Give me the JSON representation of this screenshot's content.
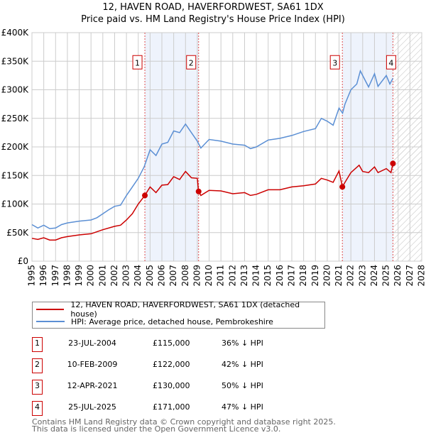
{
  "chart_data": {
    "type": "line",
    "title": "12, HAVEN ROAD, HAVERFORDWEST, SA61 1DX",
    "subtitle": "Price paid vs. HM Land Registry's House Price Index (HPI)",
    "xlim": [
      1995,
      2028
    ],
    "ylim": [
      0,
      400000
    ],
    "x_ticks": [
      "1995",
      "1996",
      "1997",
      "1998",
      "1999",
      "2000",
      "2001",
      "2002",
      "2003",
      "2004",
      "2005",
      "2006",
      "2007",
      "2008",
      "2009",
      "2010",
      "2011",
      "2012",
      "2013",
      "2014",
      "2015",
      "2016",
      "2017",
      "2018",
      "2019",
      "2020",
      "2021",
      "2022",
      "2023",
      "2024",
      "2025",
      "2026",
      "2027",
      "2028"
    ],
    "y_ticks": [
      {
        "v": 0,
        "label": "£0"
      },
      {
        "v": 50000,
        "label": "£50K"
      },
      {
        "v": 100000,
        "label": "£100K"
      },
      {
        "v": 150000,
        "label": "£150K"
      },
      {
        "v": 200000,
        "label": "£200K"
      },
      {
        "v": 250000,
        "label": "£250K"
      },
      {
        "v": 300000,
        "label": "£300K"
      },
      {
        "v": 350000,
        "label": "£350K"
      },
      {
        "v": 400000,
        "label": "£400K"
      }
    ],
    "grid": true,
    "forecast_from": 2025.56,
    "series": [
      {
        "name": "12, HAVEN ROAD, HAVERFORDWEST, SA61 1DX (detached house)",
        "color": "#cc0000",
        "x": [
          1995,
          1995.5,
          1996,
          1996.5,
          1997,
          1997.5,
          1998,
          1999,
          2000,
          2001,
          2002,
          2002.5,
          2003,
          2003.5,
          2004,
          2004.56,
          2005,
          2005.5,
          2006,
          2006.5,
          2007,
          2007.5,
          2008,
          2008.5,
          2009,
          2009.11,
          2009.3,
          2010,
          2011,
          2012,
          2013,
          2013.5,
          2014,
          2015,
          2016,
          2017,
          2018,
          2019,
          2019.5,
          2020,
          2020.5,
          2021,
          2021.28,
          2021.5,
          2022,
          2022.7,
          2023,
          2023.5,
          2024,
          2024.3,
          2025,
          2025.4,
          2025.56
        ],
        "y": [
          40000,
          38000,
          41000,
          37000,
          37000,
          41000,
          43000,
          46000,
          48000,
          55000,
          61000,
          63000,
          72000,
          83000,
          100000,
          115000,
          130000,
          120000,
          133000,
          134000,
          148000,
          143000,
          157000,
          146000,
          145000,
          122000,
          115000,
          124000,
          123000,
          118000,
          120000,
          115000,
          117000,
          125000,
          125000,
          130000,
          132000,
          135000,
          145000,
          142000,
          138000,
          158000,
          130000,
          138000,
          155000,
          168000,
          157000,
          155000,
          165000,
          155000,
          162000,
          155000,
          171000
        ]
      },
      {
        "name": "HPI: Average price, detached house, Pembrokeshire",
        "color": "#5b8fd4",
        "x": [
          1995,
          1995.5,
          1996,
          1996.5,
          1997,
          1997.5,
          1998,
          1999,
          2000,
          2000.5,
          2001,
          2001.5,
          2002,
          2002.5,
          2003,
          2003.5,
          2004,
          2004.5,
          2005,
          2005.5,
          2006,
          2006.5,
          2007,
          2007.5,
          2008,
          2008.5,
          2009,
          2009.3,
          2010,
          2011,
          2012,
          2013,
          2013.5,
          2014,
          2015,
          2016,
          2017,
          2018,
          2019,
          2019.5,
          2020,
          2020.5,
          2021,
          2021.3,
          2021.5,
          2022,
          2022.5,
          2022.8,
          2023,
          2023.5,
          2024,
          2024.3,
          2025,
          2025.3,
          2025.56
        ],
        "y": [
          64000,
          58000,
          63000,
          57000,
          58000,
          64000,
          67000,
          70000,
          72000,
          76000,
          83000,
          90000,
          96000,
          98000,
          115000,
          130000,
          145000,
          165000,
          195000,
          185000,
          205000,
          208000,
          228000,
          225000,
          240000,
          225000,
          210000,
          198000,
          213000,
          210000,
          205000,
          203000,
          197000,
          200000,
          212000,
          215000,
          220000,
          227000,
          232000,
          250000,
          245000,
          238000,
          268000,
          259000,
          275000,
          300000,
          310000,
          333000,
          325000,
          305000,
          328000,
          306000,
          325000,
          310000,
          320000
        ]
      }
    ],
    "sales": [
      {
        "num": "1",
        "date": "23-JUL-2004",
        "x": 2004.56,
        "price": "£115,000",
        "value": 115000,
        "hpi": "36% ↓ HPI"
      },
      {
        "num": "2",
        "date": "10-FEB-2009",
        "x": 2009.11,
        "price": "£122,000",
        "value": 122000,
        "hpi": "42% ↓ HPI"
      },
      {
        "num": "3",
        "date": "12-APR-2021",
        "x": 2021.28,
        "price": "£130,000",
        "value": 130000,
        "hpi": "50% ↓ HPI"
      },
      {
        "num": "4",
        "date": "25-JUL-2025",
        "x": 2025.56,
        "price": "£171,000",
        "value": 171000,
        "hpi": "47% ↓ HPI"
      }
    ],
    "shaded_periods": [
      [
        2004.56,
        2009.11
      ],
      [
        2021.28,
        2025.56
      ]
    ],
    "legend_position": "below"
  },
  "legend": {
    "property": "12, HAVEN ROAD, HAVERFORDWEST, SA61 1DX (detached house)",
    "hpi": "HPI: Average price, detached house, Pembrokeshire"
  },
  "footer": {
    "line1": "Contains HM Land Registry data © Crown copyright and database right 2025.",
    "line2": "This data is licensed under the Open Government Licence v3.0."
  }
}
